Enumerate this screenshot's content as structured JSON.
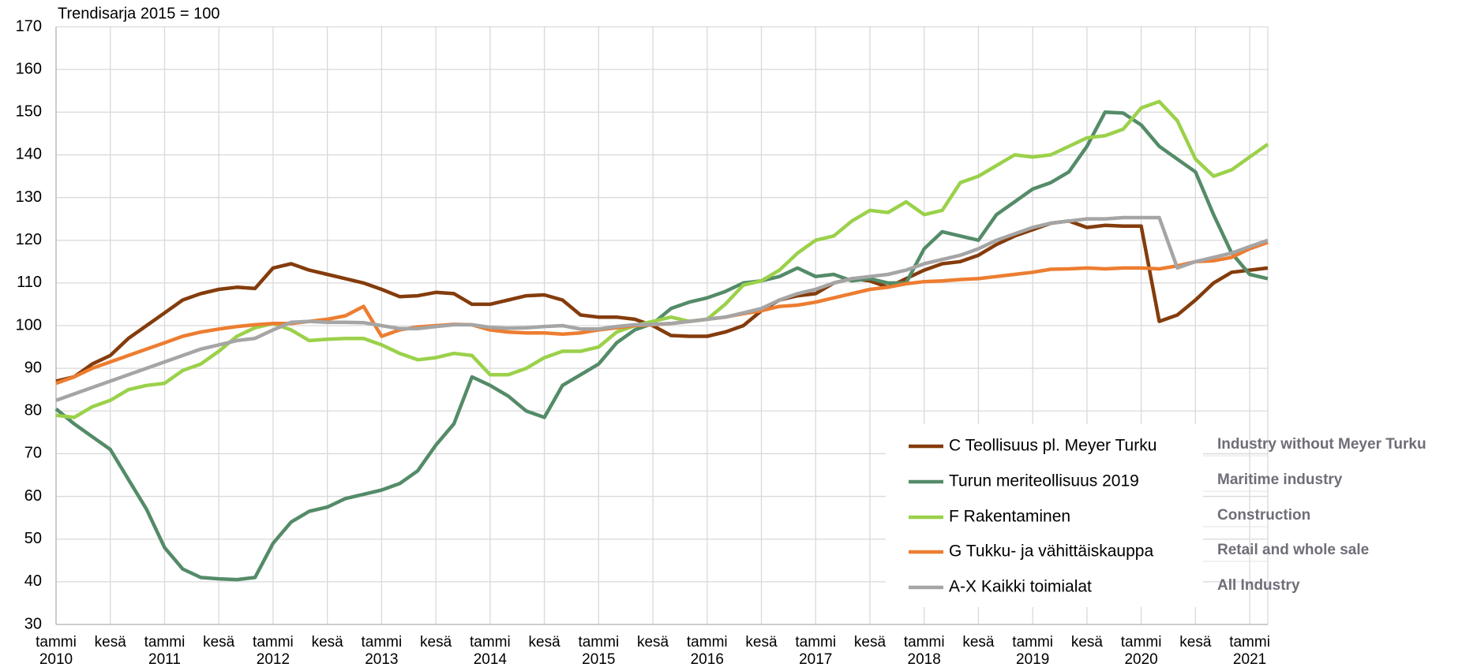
{
  "chart_data": {
    "type": "line",
    "title": "Trendisarja 2015 = 100",
    "categories": [
      "tammi\n2010",
      null,
      null,
      "kesä",
      null,
      null,
      "tammi\n2011",
      null,
      null,
      "kesä",
      null,
      null,
      "tammi\n2012",
      null,
      null,
      "kesä",
      null,
      null,
      "tammi\n2013",
      null,
      null,
      "kesä",
      null,
      null,
      "tammi\n2014",
      null,
      null,
      "kesä",
      null,
      null,
      "tammi\n2015",
      null,
      null,
      "kesä",
      null,
      null,
      "tammi\n2016",
      null,
      null,
      "kesä",
      null,
      null,
      "tammi\n2017",
      null,
      null,
      "kesä",
      null,
      null,
      "tammi\n2018",
      null,
      null,
      "kesä",
      null,
      null,
      "tammi\n2019",
      null,
      null,
      "kesä",
      null,
      null,
      "tammi\n2020",
      null,
      null,
      "kesä",
      null,
      null,
      "tammi\n2021",
      null
    ],
    "series": [
      {
        "name": "C Teollisuus pl. Meyer Turku",
        "color": "#843c0c",
        "values": [
          87,
          88,
          91,
          93,
          97,
          100,
          103,
          106,
          107.5,
          108.5,
          109,
          108.7,
          113.5,
          114.5,
          113,
          112,
          111,
          110,
          108.5,
          106.8,
          107,
          107.8,
          107.5,
          105,
          105,
          106,
          107,
          107.2,
          106,
          102.5,
          102,
          102,
          101.5,
          100,
          97.7,
          97.5,
          97.5,
          98.5,
          100,
          103.5,
          106,
          107,
          107.5,
          110,
          111,
          110.5,
          109,
          111,
          113,
          114.5,
          115,
          116.5,
          119,
          121,
          122.5,
          124,
          124.5,
          123,
          123.5,
          123.3,
          123.3,
          101,
          102.5,
          106,
          110,
          112.5,
          113,
          113.5
        ]
      },
      {
        "name": "Turun meriteollisuus 2019",
        "color": "#548b68",
        "values": [
          80.5,
          77,
          74,
          71,
          64,
          57,
          48,
          43,
          41,
          40.7,
          40.5,
          41,
          49,
          54,
          56.5,
          57.5,
          59.5,
          60.5,
          61.5,
          63,
          66,
          72,
          77,
          88,
          86,
          83.5,
          80,
          78.5,
          86,
          88.5,
          91,
          96,
          99,
          100.5,
          104,
          105.5,
          106.5,
          108,
          110,
          110.5,
          111.5,
          113.5,
          111.5,
          112,
          110.5,
          111,
          110,
          110,
          118,
          122,
          121,
          120,
          126,
          129,
          132,
          133.5,
          136,
          142,
          150,
          149.8,
          147,
          142,
          139,
          136,
          126,
          117,
          112,
          111
        ]
      },
      {
        "name": "F Rakentaminen",
        "color": "#9bd14a",
        "values": [
          79,
          78.5,
          81,
          82.5,
          85,
          86,
          86.5,
          89.5,
          91,
          94,
          97.5,
          99.5,
          100.5,
          99,
          96.5,
          96.8,
          97,
          97,
          95.5,
          93.5,
          92,
          92.5,
          93.5,
          93,
          88.5,
          88.5,
          90,
          92.5,
          94,
          94,
          95,
          98.5,
          100,
          101,
          102,
          101,
          101.5,
          105,
          109.5,
          110.5,
          113,
          117,
          120,
          121,
          124.5,
          127,
          126.5,
          129,
          126,
          127,
          133.5,
          135,
          137.5,
          140,
          139.5,
          140,
          142,
          144,
          144.5,
          146,
          151,
          152.5,
          148,
          139,
          135,
          136.5,
          139.5,
          142.5
        ]
      },
      {
        "name": "G Tukku- ja vähittäiskauppa",
        "color": "#ed7d31",
        "values": [
          86.5,
          88,
          90,
          91.5,
          93,
          94.5,
          96,
          97.5,
          98.5,
          99.2,
          99.8,
          100.2,
          100.5,
          100.5,
          101,
          101.5,
          102.3,
          104.5,
          97.5,
          99,
          99.7,
          100,
          100.3,
          100.2,
          99,
          98.5,
          98.3,
          98.3,
          98,
          98.3,
          99,
          99.5,
          100,
          100.2,
          100.5,
          101,
          101.5,
          102,
          102.8,
          103.5,
          104.5,
          104.8,
          105.5,
          106.5,
          107.5,
          108.5,
          109,
          109.8,
          110.3,
          110.5,
          110.8,
          111,
          111.5,
          112,
          112.5,
          113.2,
          113.3,
          113.5,
          113.3,
          113.5,
          113.5,
          113.3,
          114,
          115,
          115.2,
          116,
          118,
          119.5
        ]
      },
      {
        "name": "A-X Kaikki toimialat",
        "color": "#a5a5a5",
        "values": [
          82.5,
          84,
          85.5,
          87,
          88.5,
          90,
          91.5,
          93,
          94.5,
          95.5,
          96.5,
          97,
          99,
          100.8,
          101,
          100.8,
          100.8,
          100.7,
          100,
          99.3,
          99.3,
          99.8,
          100.2,
          100.2,
          99.6,
          99.4,
          99.5,
          99.8,
          100,
          99.2,
          99.2,
          99.8,
          100.2,
          100.3,
          100.5,
          101,
          101.5,
          102,
          103,
          104,
          106,
          107.5,
          108.5,
          110,
          111,
          111.5,
          112,
          113,
          114.5,
          115.5,
          116.5,
          118,
          120,
          121.5,
          123,
          124,
          124.5,
          125,
          125,
          125.3,
          125.3,
          125.3,
          113.5,
          115,
          116,
          117,
          118.5,
          120
        ]
      }
    ],
    "legend_en": [
      "Industry without Meyer Turku",
      "Maritime industry",
      "Construction",
      "Retail and whole sale",
      "All Industry"
    ],
    "ylim": [
      30,
      170
    ],
    "yticks": [
      30,
      40,
      50,
      60,
      70,
      80,
      90,
      100,
      110,
      120,
      130,
      140,
      150,
      160,
      170
    ],
    "grid": true,
    "legend": "lower right"
  }
}
